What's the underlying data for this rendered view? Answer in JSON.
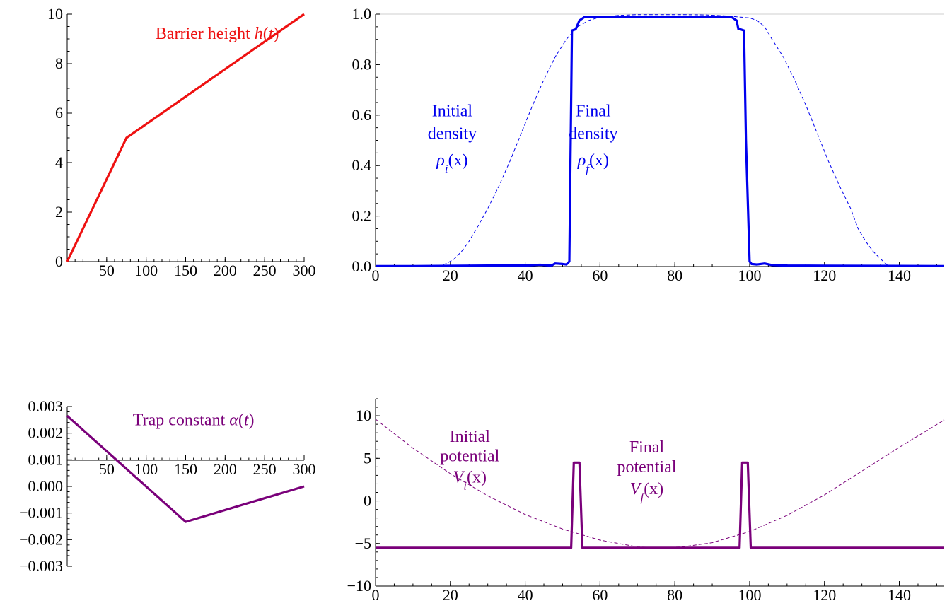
{
  "chart_data": [
    {
      "id": "barrier",
      "type": "line",
      "title": "",
      "xlabel": "",
      "ylabel": "",
      "xlim": [
        0,
        300
      ],
      "ylim": [
        0,
        10
      ],
      "xticks": [
        50,
        100,
        150,
        200,
        250,
        300
      ],
      "yticks": [
        0,
        2,
        4,
        6,
        8,
        10
      ],
      "xminor_step": 10,
      "yminor_step": 0.5,
      "grid": false,
      "colors": {
        "line": "#ee1111",
        "text": "#ee1111"
      },
      "series": [
        {
          "name": "Barrier height h(t)",
          "x": [
            0,
            75,
            300
          ],
          "y": [
            0,
            5,
            10
          ],
          "dashed": false
        }
      ],
      "annotations": [
        {
          "parts": [
            {
              "t": "Barrier height "
            },
            {
              "t": "h",
              "it": true
            },
            {
              "t": "("
            },
            {
              "t": "t",
              "it": true
            },
            {
              "t": ")"
            }
          ],
          "x": 190,
          "y": 9.0,
          "color": "#ee1111"
        }
      ]
    },
    {
      "id": "density",
      "type": "line",
      "title": "",
      "xlabel": "",
      "ylabel": "",
      "xlim": [
        0,
        152
      ],
      "ylim": [
        0,
        1.0
      ],
      "xticks": [
        0,
        20,
        40,
        60,
        80,
        100,
        120,
        140
      ],
      "yticks": [
        0.0,
        0.2,
        0.4,
        0.6,
        0.8,
        1.0
      ],
      "ytick_labels": [
        "0.0",
        "0.2",
        "0.4",
        "0.6",
        "0.8",
        "1.0"
      ],
      "xminor_step": 5,
      "yminor_step": 0.05,
      "grid": false,
      "reference_line": {
        "y": 1.0,
        "color": "#cfcfcf"
      },
      "colors": {
        "line": "#0000ee",
        "text": "#0000ee"
      },
      "series": [
        {
          "name": "Initial density",
          "dashed": true,
          "x": [
            0,
            15,
            17,
            19,
            21,
            23,
            25,
            27,
            30,
            33,
            36,
            39,
            42,
            45,
            48,
            51,
            54,
            57,
            60,
            65,
            70,
            76,
            82,
            88,
            94,
            100,
            102,
            104,
            106,
            109,
            112,
            115,
            118,
            121,
            124,
            127,
            129,
            131,
            133,
            135,
            137,
            152
          ],
          "y": [
            0,
            0,
            0.003,
            0.012,
            0.03,
            0.06,
            0.1,
            0.15,
            0.23,
            0.32,
            0.42,
            0.53,
            0.64,
            0.74,
            0.83,
            0.9,
            0.95,
            0.975,
            0.988,
            0.995,
            0.998,
            0.998,
            0.998,
            0.997,
            0.993,
            0.985,
            0.975,
            0.95,
            0.9,
            0.83,
            0.74,
            0.64,
            0.53,
            0.42,
            0.32,
            0.23,
            0.15,
            0.1,
            0.06,
            0.03,
            0.003,
            0
          ]
        },
        {
          "name": "Final density",
          "dashed": false,
          "x": [
            0,
            10,
            30,
            40,
            44,
            47,
            48,
            50,
            51,
            51.8,
            52.5,
            53.5,
            54.5,
            56,
            60,
            70,
            80,
            90,
            95,
            96.5,
            97,
            97.5,
            98.5,
            99,
            100,
            100.5,
            102,
            104,
            106,
            110,
            120,
            152
          ],
          "y": [
            0.002,
            0.002,
            0.004,
            0.004,
            0.007,
            0.004,
            0.012,
            0.01,
            0.008,
            0.02,
            0.935,
            0.94,
            0.975,
            0.99,
            0.99,
            0.99,
            0.988,
            0.99,
            0.99,
            0.975,
            0.94,
            0.94,
            0.935,
            0.5,
            0.02,
            0.01,
            0.008,
            0.012,
            0.006,
            0.004,
            0.003,
            0.002
          ]
        }
      ],
      "annotations": [
        {
          "parts": [
            {
              "t": "Initial"
            }
          ],
          "x": 20.5,
          "y": 0.595,
          "color": "#0000ee"
        },
        {
          "parts": [
            {
              "t": "density"
            }
          ],
          "x": 20.5,
          "y": 0.505,
          "color": "#0000ee"
        },
        {
          "parts": [
            {
              "t": "ρ",
              "it": true
            },
            {
              "t": "i",
              "it": true,
              "sub": true
            },
            {
              "t": "(x)"
            }
          ],
          "x": 20.5,
          "y": 0.4,
          "color": "#0000ee"
        },
        {
          "parts": [
            {
              "t": "Final"
            }
          ],
          "x": 58.2,
          "y": 0.595,
          "color": "#0000ee"
        },
        {
          "parts": [
            {
              "t": "density"
            }
          ],
          "x": 58.2,
          "y": 0.505,
          "color": "#0000ee"
        },
        {
          "parts": [
            {
              "t": "ρ",
              "it": true
            },
            {
              "t": "f",
              "it": true,
              "sub": true
            },
            {
              "t": "(x)"
            }
          ],
          "x": 58.2,
          "y": 0.4,
          "color": "#0000ee"
        }
      ]
    },
    {
      "id": "trap",
      "type": "line",
      "title": "",
      "xlabel": "",
      "ylabel": "",
      "xlim": [
        0,
        300
      ],
      "ylim": [
        -0.003,
        0.003
      ],
      "xticks": [
        50,
        100,
        150,
        200,
        250,
        300
      ],
      "yticks": [
        -0.003,
        -0.002,
        -0.001,
        0.0,
        0.001,
        0.002,
        0.003
      ],
      "ytick_labels": [
        "−0.003",
        "−0.002",
        "−0.001",
        "0.000",
        "0.001",
        "0.002",
        "0.003"
      ],
      "xminor_step": 10,
      "yminor_step": 0.0002,
      "grid": false,
      "colors": {
        "line": "#7a007a",
        "text": "#7a007a"
      },
      "series": [
        {
          "name": "Trap constant α(t)",
          "x": [
            0,
            150,
            300
          ],
          "y": [
            0.00265,
            -0.00133,
            0.0
          ],
          "dashed": false
        }
      ],
      "annotations": [
        {
          "parts": [
            {
              "t": "Trap constant "
            },
            {
              "t": "α",
              "it": true
            },
            {
              "t": "("
            },
            {
              "t": "t",
              "it": true
            },
            {
              "t": ")"
            }
          ],
          "x": 160,
          "y": 0.0023,
          "color": "#7a007a"
        }
      ]
    },
    {
      "id": "potential",
      "type": "line",
      "title": "",
      "xlabel": "",
      "ylabel": "",
      "xlim": [
        0,
        152
      ],
      "ylim": [
        -10,
        12
      ],
      "xticks": [
        0,
        20,
        40,
        60,
        80,
        100,
        120,
        140
      ],
      "yticks": [
        -10,
        -5,
        0,
        5,
        10
      ],
      "ytick_labels": [
        "−10",
        "−5",
        "0",
        "5",
        "10"
      ],
      "xminor_step": 5,
      "yminor_step": 1,
      "grid": false,
      "colors": {
        "line": "#7a007a",
        "text": "#7a007a"
      },
      "series": [
        {
          "name": "Initial potential",
          "dashed": true,
          "x": [
            0,
            10,
            20,
            30,
            40,
            50,
            60,
            70,
            76,
            82,
            90,
            100,
            110,
            120,
            130,
            140,
            152
          ],
          "y": [
            9.6,
            6.2,
            3.2,
            0.6,
            -1.6,
            -3.3,
            -4.6,
            -5.4,
            -5.5,
            -5.4,
            -4.9,
            -3.6,
            -1.7,
            0.7,
            3.5,
            6.3,
            9.5
          ]
        },
        {
          "name": "Final potential",
          "dashed": false,
          "x": [
            0,
            52.3,
            53,
            54.5,
            55.3,
            97.3,
            98,
            99.5,
            100.3,
            152
          ],
          "y": [
            -5.5,
            -5.5,
            4.5,
            4.5,
            -5.5,
            -5.5,
            4.5,
            4.5,
            -5.5,
            -5.5
          ]
        }
      ],
      "annotations": [
        {
          "parts": [
            {
              "t": "Initial"
            }
          ],
          "x": 25.2,
          "y": 6.95,
          "color": "#7a007a"
        },
        {
          "parts": [
            {
              "t": "potential"
            }
          ],
          "x": 25.2,
          "y": 4.65,
          "color": "#7a007a"
        },
        {
          "parts": [
            {
              "t": "V",
              "it": true
            },
            {
              "t": "i",
              "it": true,
              "sub": true
            },
            {
              "t": "(x)"
            }
          ],
          "x": 25.2,
          "y": 2.15,
          "color": "#7a007a"
        },
        {
          "parts": [
            {
              "t": "Final"
            }
          ],
          "x": 72.5,
          "y": 5.7,
          "color": "#7a007a"
        },
        {
          "parts": [
            {
              "t": "potential"
            }
          ],
          "x": 72.5,
          "y": 3.35,
          "color": "#7a007a"
        },
        {
          "parts": [
            {
              "t": "V",
              "it": true
            },
            {
              "t": "f",
              "it": true,
              "sub": true
            },
            {
              "t": "(x)"
            }
          ],
          "x": 72.5,
          "y": 0.8,
          "color": "#7a007a"
        }
      ]
    }
  ]
}
